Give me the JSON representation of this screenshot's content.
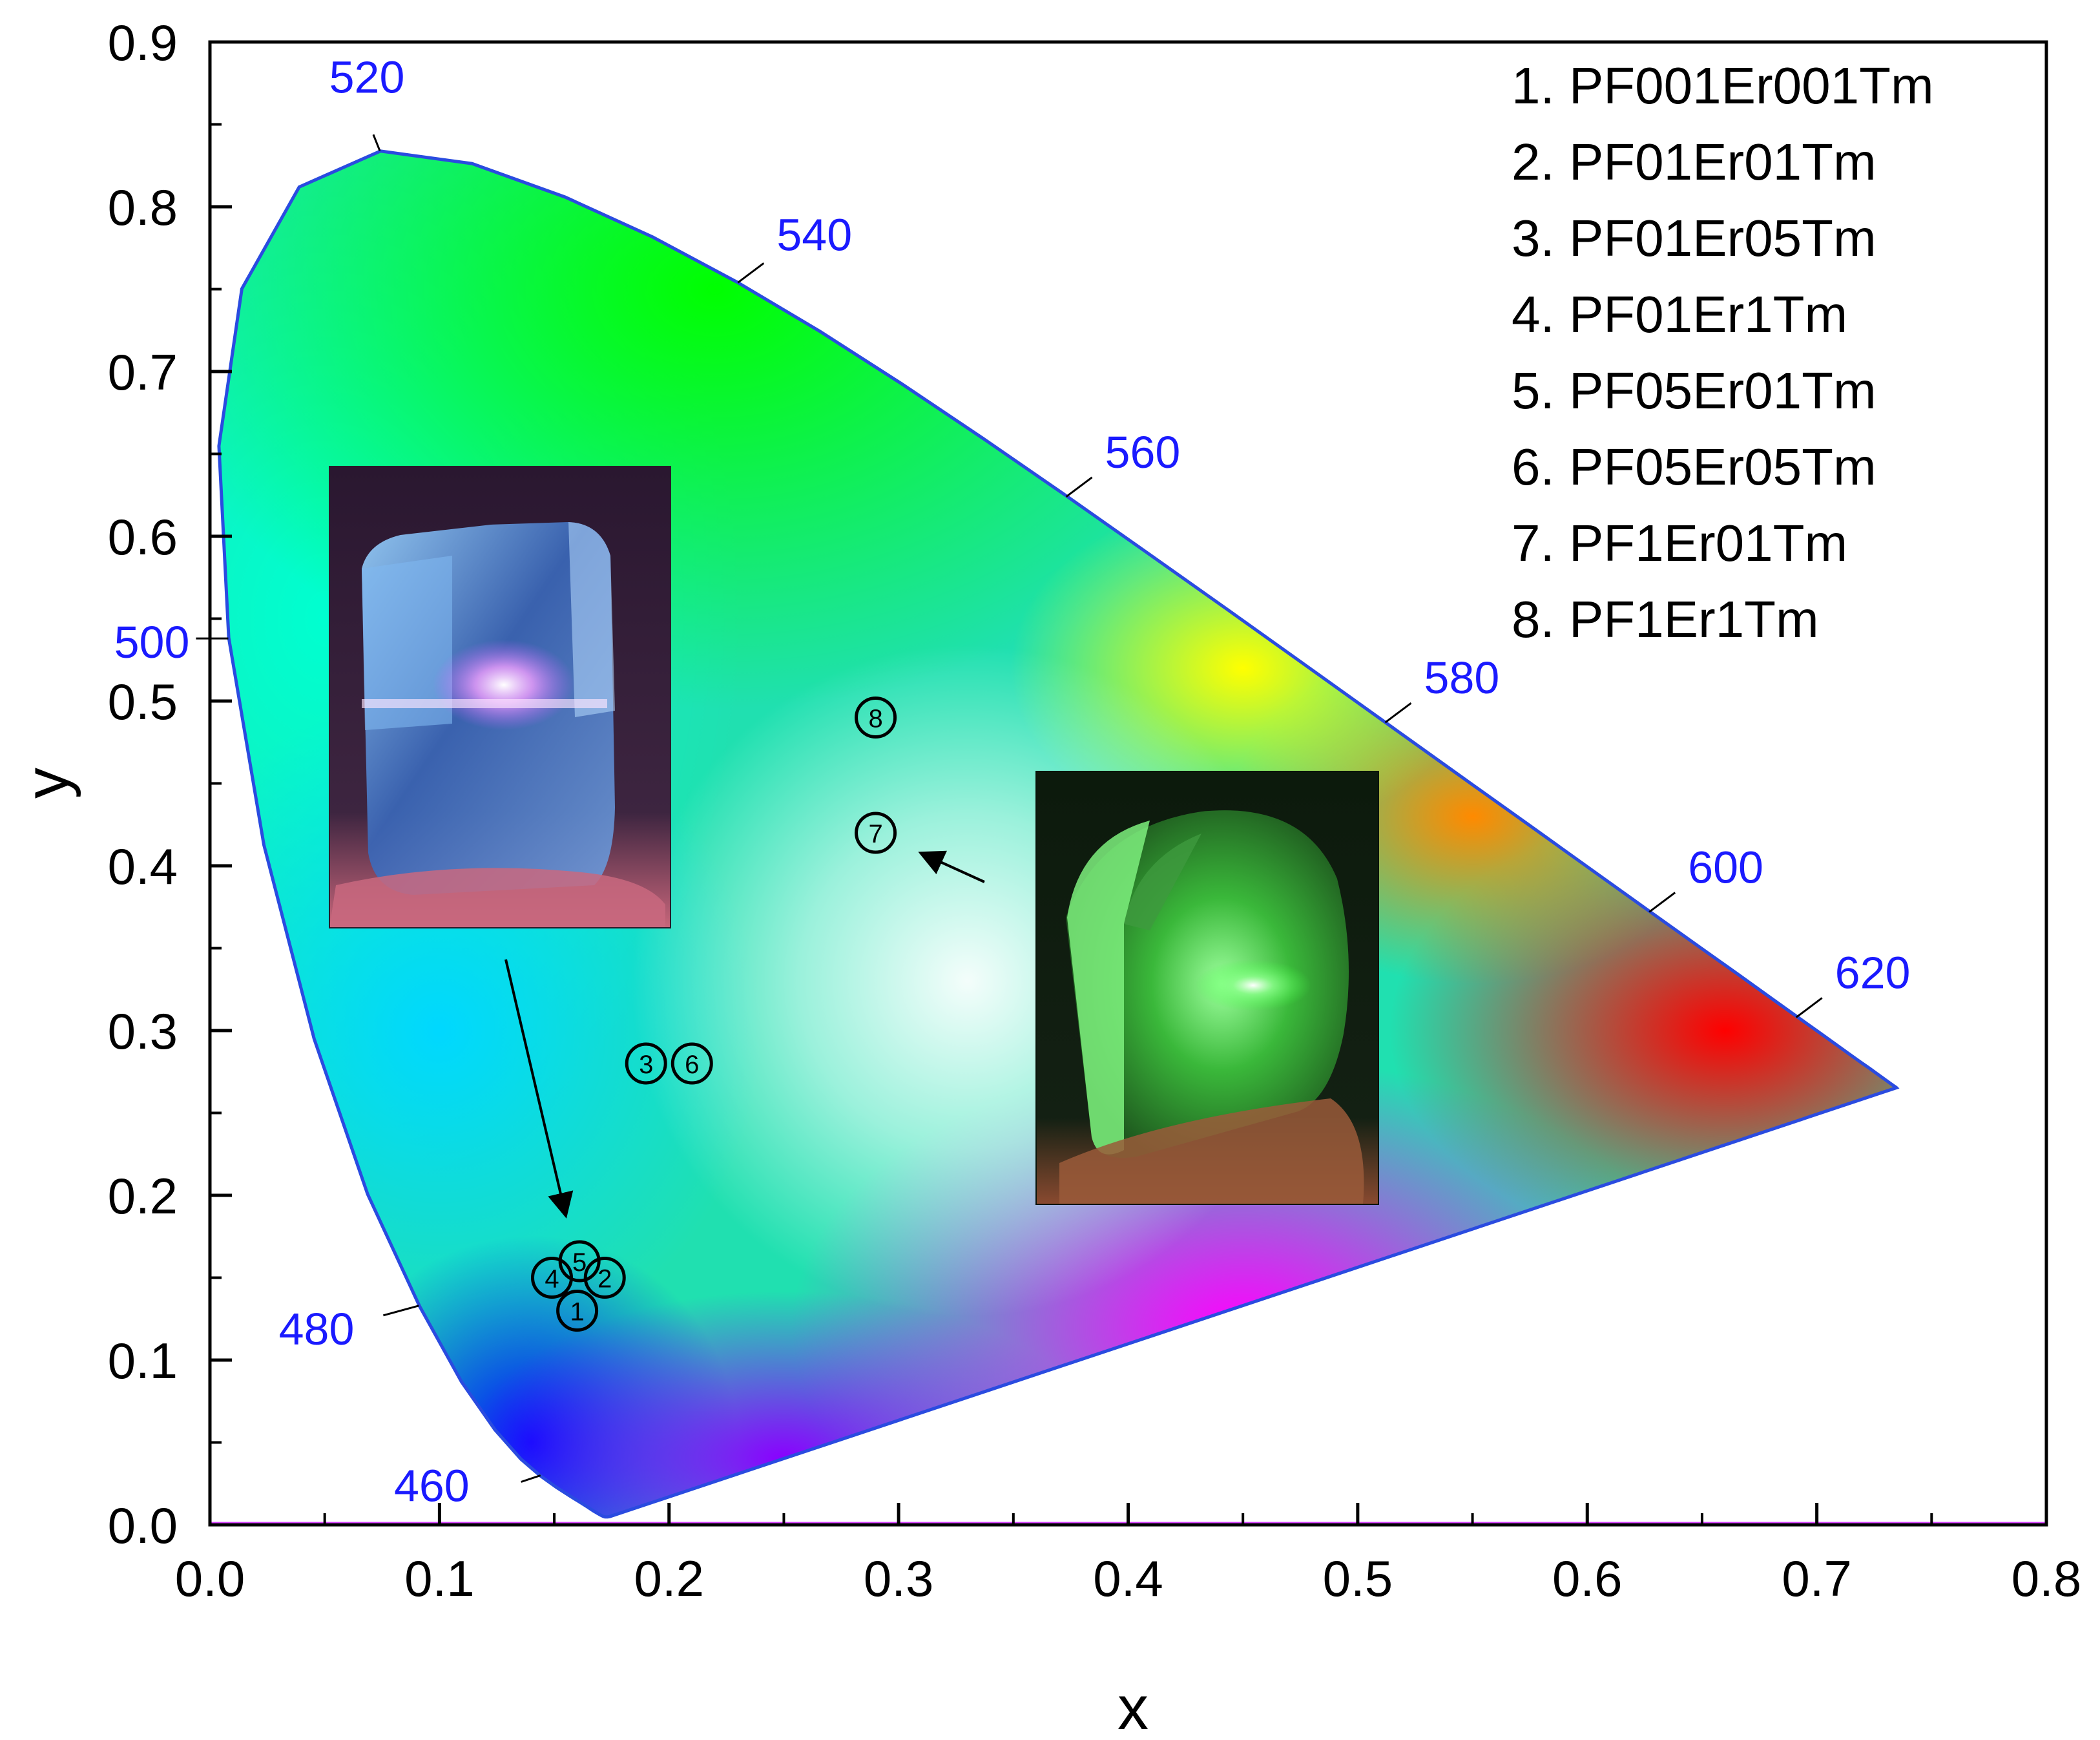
{
  "chart_data": {
    "type": "scatter",
    "title": "",
    "xlabel": "x",
    "ylabel": "y",
    "xlim": [
      0.0,
      0.8
    ],
    "ylim": [
      0.0,
      0.9
    ],
    "x_ticks": [
      "0.0",
      "0.1",
      "0.2",
      "0.3",
      "0.4",
      "0.5",
      "0.6",
      "0.7",
      "0.8"
    ],
    "y_ticks": [
      "0.0",
      "0.1",
      "0.2",
      "0.3",
      "0.4",
      "0.5",
      "0.6",
      "0.7",
      "0.8",
      "0.9"
    ],
    "grid": false,
    "legend_position": "top-right",
    "legend": [
      "1. PF001Er001Tm",
      "2. PF01Er01Tm",
      "3. PF01Er05Tm",
      "4. PF01Er1Tm",
      "5. PF05Er01Tm",
      "6. PF05Er05Tm",
      "7. PF1Er01Tm",
      "8. PF1Er1Tm"
    ],
    "points": [
      {
        "label": "1",
        "x": 0.16,
        "y": 0.13
      },
      {
        "label": "2",
        "x": 0.172,
        "y": 0.15
      },
      {
        "label": "3",
        "x": 0.19,
        "y": 0.28
      },
      {
        "label": "4",
        "x": 0.149,
        "y": 0.15
      },
      {
        "label": "5",
        "x": 0.161,
        "y": 0.16
      },
      {
        "label": "6",
        "x": 0.21,
        "y": 0.28
      },
      {
        "label": "7",
        "x": 0.29,
        "y": 0.42
      },
      {
        "label": "8",
        "x": 0.29,
        "y": 0.49
      }
    ],
    "wavelength_labels": [
      {
        "text": "460",
        "x": 0.144,
        "y": 0.03
      },
      {
        "text": "480",
        "x": 0.091,
        "y": 0.133
      },
      {
        "text": "500",
        "x": 0.008,
        "y": 0.538
      },
      {
        "text": "520",
        "x": 0.074,
        "y": 0.834
      },
      {
        "text": "540",
        "x": 0.23,
        "y": 0.754
      },
      {
        "text": "560",
        "x": 0.373,
        "y": 0.624
      },
      {
        "text": "580",
        "x": 0.512,
        "y": 0.487
      },
      {
        "text": "600",
        "x": 0.627,
        "y": 0.372
      },
      {
        "text": "620",
        "x": 0.691,
        "y": 0.308
      }
    ],
    "spectral_locus": [
      [
        0.1741,
        0.005
      ],
      [
        0.1738,
        0.0049
      ],
      [
        0.1736,
        0.0049
      ],
      [
        0.1733,
        0.0048
      ],
      [
        0.173,
        0.0048
      ],
      [
        0.1726,
        0.0048
      ],
      [
        0.1721,
        0.0048
      ],
      [
        0.1714,
        0.0051
      ],
      [
        0.1703,
        0.0058
      ],
      [
        0.1689,
        0.0069
      ],
      [
        0.1669,
        0.0086
      ],
      [
        0.1644,
        0.0109
      ],
      [
        0.1611,
        0.0138
      ],
      [
        0.1566,
        0.0177
      ],
      [
        0.151,
        0.0227
      ],
      [
        0.144,
        0.0297
      ],
      [
        0.1355,
        0.0399
      ],
      [
        0.1241,
        0.0578
      ],
      [
        0.1096,
        0.0868
      ],
      [
        0.0913,
        0.1327
      ],
      [
        0.0687,
        0.2007
      ],
      [
        0.0454,
        0.295
      ],
      [
        0.0235,
        0.4127
      ],
      [
        0.0082,
        0.5384
      ],
      [
        0.0039,
        0.6548
      ],
      [
        0.0139,
        0.7502
      ],
      [
        0.0389,
        0.812
      ],
      [
        0.0743,
        0.8338
      ],
      [
        0.1142,
        0.8262
      ],
      [
        0.1547,
        0.8059
      ],
      [
        0.1929,
        0.7816
      ],
      [
        0.2296,
        0.7543
      ],
      [
        0.2658,
        0.7243
      ],
      [
        0.3016,
        0.6923
      ],
      [
        0.3373,
        0.6589
      ],
      [
        0.3731,
        0.6245
      ],
      [
        0.4087,
        0.5896
      ],
      [
        0.4441,
        0.5547
      ],
      [
        0.4788,
        0.5202
      ],
      [
        0.5125,
        0.4866
      ],
      [
        0.5448,
        0.4544
      ],
      [
        0.5752,
        0.4242
      ],
      [
        0.6029,
        0.3965
      ],
      [
        0.627,
        0.3725
      ],
      [
        0.6482,
        0.3514
      ],
      [
        0.6658,
        0.334
      ],
      [
        0.6801,
        0.3197
      ],
      [
        0.6915,
        0.3083
      ],
      [
        0.7006,
        0.2993
      ],
      [
        0.7079,
        0.292
      ],
      [
        0.714,
        0.2859
      ],
      [
        0.719,
        0.2809
      ],
      [
        0.723,
        0.277
      ],
      [
        0.726,
        0.274
      ],
      [
        0.7283,
        0.2717
      ],
      [
        0.73,
        0.27
      ],
      [
        0.7311,
        0.2689
      ],
      [
        0.732,
        0.268
      ],
      [
        0.7327,
        0.2673
      ],
      [
        0.7334,
        0.2666
      ],
      [
        0.734,
        0.266
      ],
      [
        0.7344,
        0.2656
      ],
      [
        0.7346,
        0.2654
      ],
      [
        0.7347,
        0.2653
      ]
    ],
    "insets": [
      {
        "description_name": "left-crystal-photo-inset"
      },
      {
        "description_name": "right-crystal-photo-inset"
      }
    ]
  },
  "colors": {
    "wavelength_label": "#1a1aff",
    "locus_outline": "#2a4be0",
    "axis": "#000000",
    "marker": "#000000"
  }
}
